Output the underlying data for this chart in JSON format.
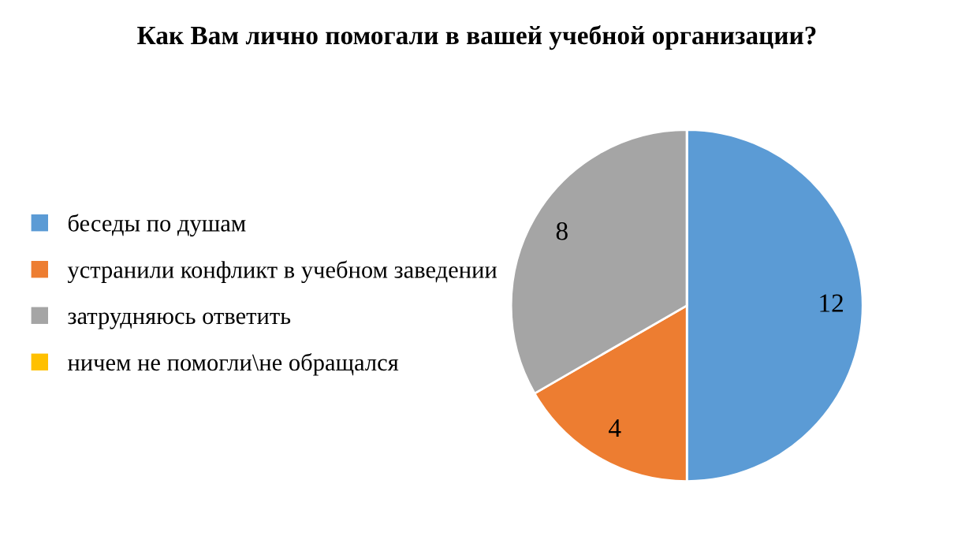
{
  "chart_data": {
    "type": "pie",
    "title": "Как Вам лично помогали в вашей учебной организации?",
    "categories": [
      "беседы по душам",
      "устранили конфликт в учебном заведении",
      "затрудняюсь ответить",
      "ничем не помогли\\не обращался"
    ],
    "values": [
      12,
      4,
      8,
      0
    ],
    "colors": [
      "#5b9bd5",
      "#ed7d31",
      "#a5a5a5",
      "#ffc000"
    ],
    "value_labels": [
      "12",
      "4",
      "8",
      null
    ],
    "legend": "left"
  }
}
